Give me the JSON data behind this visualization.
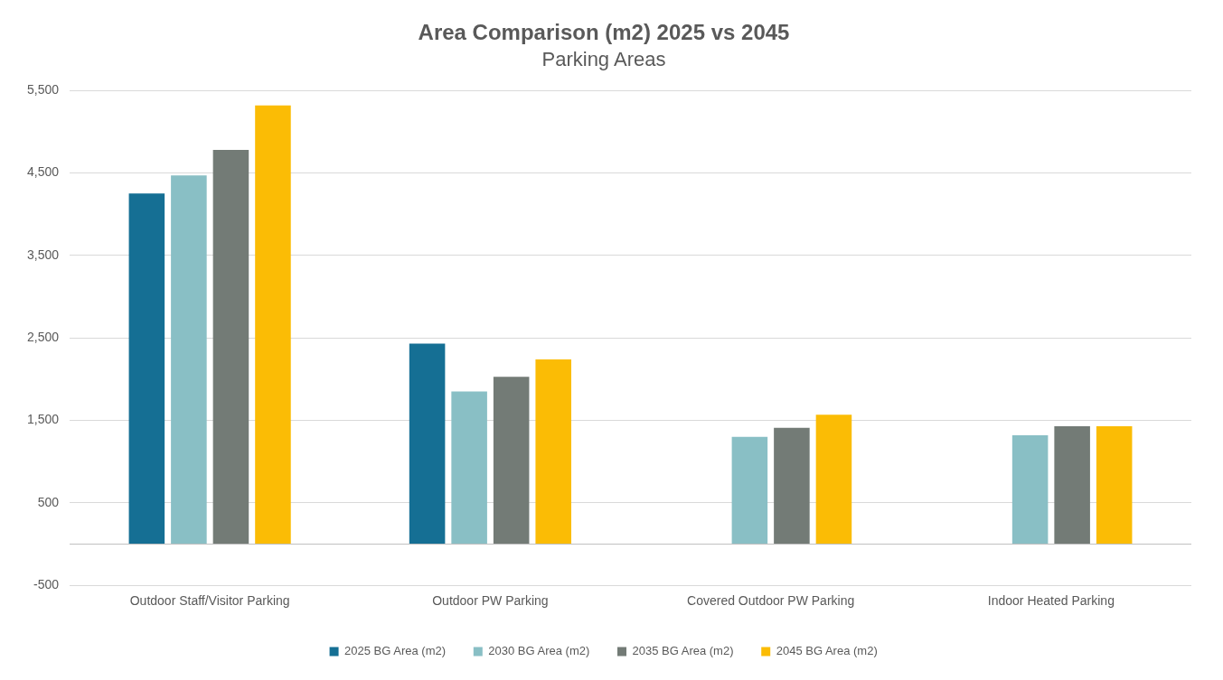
{
  "chart_data": {
    "type": "bar",
    "title": "Area Comparison (m2) 2025 vs 2045",
    "subtitle": "Parking Areas",
    "categories": [
      "Outdoor Staff/Visitor Parking",
      "Outdoor PW Parking",
      "Covered Outdoor PW Parking",
      "Indoor Heated Parking"
    ],
    "series": [
      {
        "name": "2025 BG Area (m2)",
        "color": "#156f94",
        "values": [
          4250,
          2430,
          null,
          null
        ]
      },
      {
        "name": "2030 BG Area (m2)",
        "color": "#89bfc5",
        "values": [
          4470,
          1850,
          1300,
          1320
        ]
      },
      {
        "name": "2035 BG Area (m2)",
        "color": "#737b76",
        "values": [
          4780,
          2030,
          1410,
          1430
        ]
      },
      {
        "name": "2045 BG Area (m2)",
        "color": "#fbbc05",
        "values": [
          5320,
          2240,
          1570,
          1430
        ]
      }
    ],
    "ylim": [
      -500,
      5500
    ],
    "yticks": [
      {
        "value": -500,
        "label": "-500"
      },
      {
        "value": 500,
        "label": "500"
      },
      {
        "value": 1500,
        "label": "1,500"
      },
      {
        "value": 2500,
        "label": "2,500"
      },
      {
        "value": 3500,
        "label": "3,500"
      },
      {
        "value": 4500,
        "label": "4,500"
      },
      {
        "value": 5500,
        "label": "5,500"
      }
    ],
    "grid": "y",
    "legend": "bottom"
  }
}
